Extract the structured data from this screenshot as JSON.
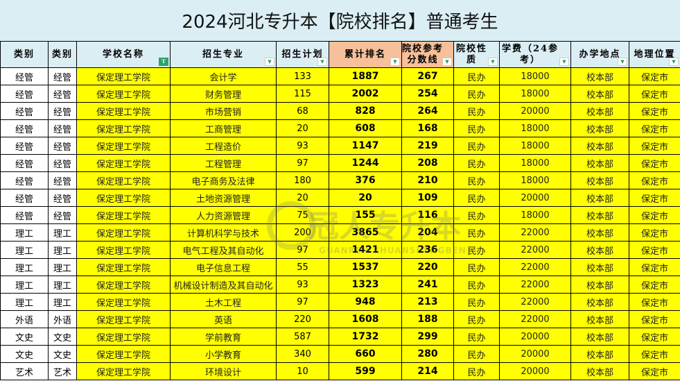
{
  "title": "2024河北专升本【院校排名】普通考生",
  "headers": [
    "类别",
    "类别",
    "学校名称",
    "招生专业",
    "招生计划",
    "累计排名",
    "院校参考分数线",
    "院校性质",
    "学费（24参考）",
    "办学地点",
    "地理位置"
  ],
  "watermark": {
    "cn": "冠人专升本",
    "en": "GUANREN ZHUANSHENGBEN"
  },
  "colors": {
    "header": "#dbeef4",
    "header_highlight": "#f7bf9a",
    "row_highlight": "#ffff00"
  },
  "rows": [
    [
      "经管",
      "经管",
      "保定理工学院",
      "会计学",
      "133",
      "1887",
      "267",
      "民办",
      "18000",
      "校本部",
      "保定市"
    ],
    [
      "经管",
      "经管",
      "保定理工学院",
      "财务管理",
      "115",
      "2002",
      "254",
      "民办",
      "18000",
      "校本部",
      "保定市"
    ],
    [
      "经管",
      "经管",
      "保定理工学院",
      "市场营销",
      "68",
      "828",
      "264",
      "民办",
      "20000",
      "校本部",
      "保定市"
    ],
    [
      "经管",
      "经管",
      "保定理工学院",
      "工商管理",
      "20",
      "608",
      "168",
      "民办",
      "18000",
      "校本部",
      "保定市"
    ],
    [
      "经管",
      "经管",
      "保定理工学院",
      "工程造价",
      "93",
      "1147",
      "219",
      "民办",
      "18000",
      "校本部",
      "保定市"
    ],
    [
      "经管",
      "经管",
      "保定理工学院",
      "工程管理",
      "97",
      "1244",
      "208",
      "民办",
      "18000",
      "校本部",
      "保定市"
    ],
    [
      "经管",
      "经管",
      "保定理工学院",
      "电子商务及法律",
      "180",
      "376",
      "210",
      "民办",
      "18000",
      "校本部",
      "保定市"
    ],
    [
      "经管",
      "经管",
      "保定理工学院",
      "土地资源管理",
      "20",
      "20",
      "109",
      "民办",
      "20000",
      "校本部",
      "保定市"
    ],
    [
      "经管",
      "经管",
      "保定理工学院",
      "人力资源管理",
      "75",
      "155",
      "116",
      "民办",
      "18000",
      "校本部",
      "保定市"
    ],
    [
      "理工",
      "理工",
      "保定理工学院",
      "计算机科学与技术",
      "200",
      "3865",
      "204",
      "民办",
      "22000",
      "校本部",
      "保定市"
    ],
    [
      "理工",
      "理工",
      "保定理工学院",
      "电气工程及其自动化",
      "97",
      "1421",
      "236",
      "民办",
      "22000",
      "校本部",
      "保定市"
    ],
    [
      "理工",
      "理工",
      "保定理工学院",
      "电子信息工程",
      "55",
      "1537",
      "220",
      "民办",
      "22000",
      "校本部",
      "保定市"
    ],
    [
      "理工",
      "理工",
      "保定理工学院",
      "机械设计制造及其自动化",
      "93",
      "1323",
      "241",
      "民办",
      "22000",
      "校本部",
      "保定市"
    ],
    [
      "理工",
      "理工",
      "保定理工学院",
      "土木工程",
      "97",
      "948",
      "213",
      "民办",
      "22000",
      "校本部",
      "保定市"
    ],
    [
      "外语",
      "外语",
      "保定理工学院",
      "英语",
      "220",
      "1608",
      "188",
      "民办",
      "22000",
      "校本部",
      "保定市"
    ],
    [
      "文史",
      "文史",
      "保定理工学院",
      "学前教育",
      "587",
      "1732",
      "299",
      "民办",
      "20000",
      "校本部",
      "保定市"
    ],
    [
      "文史",
      "文史",
      "保定理工学院",
      "小学教育",
      "340",
      "660",
      "280",
      "民办",
      "20000",
      "校本部",
      "保定市"
    ],
    [
      "艺术",
      "艺术",
      "保定理工学院",
      "环境设计",
      "10",
      "599",
      "214",
      "民办",
      "20000",
      "校本部",
      "保定市"
    ]
  ]
}
